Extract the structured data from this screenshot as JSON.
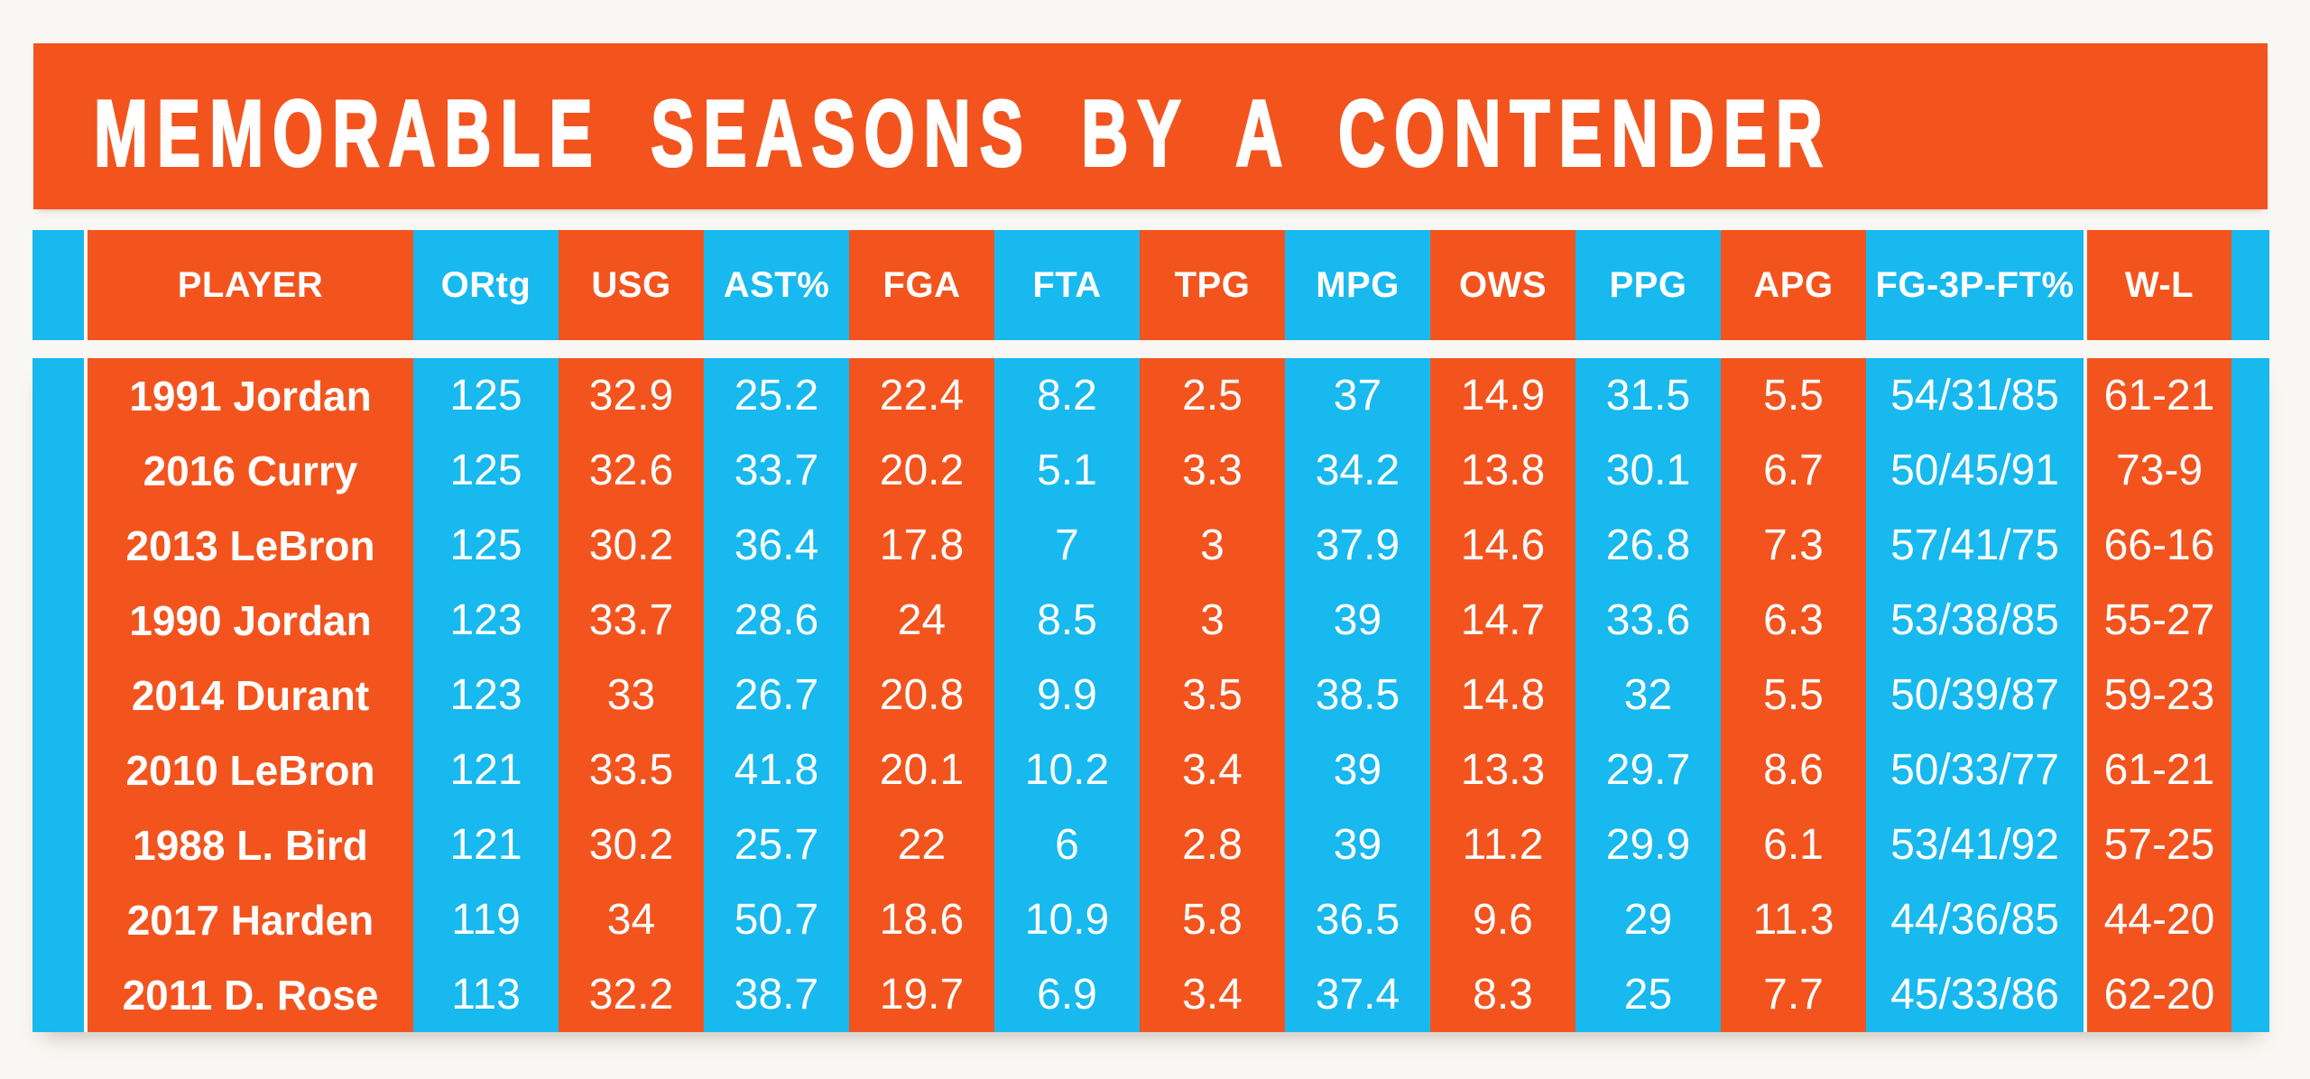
{
  "title": "MEMORABLE SEASONS BY A CONTENDER",
  "colors": {
    "orange": "#F3541E",
    "cyan": "#17B9EF",
    "text": "#FFFFFF",
    "background": "#F9F7F3"
  },
  "table": {
    "columns": [
      {
        "key": "player",
        "label": "PLAYER",
        "color": "orange"
      },
      {
        "key": "ortg",
        "label": "ORtg",
        "color": "cyan"
      },
      {
        "key": "usg",
        "label": "USG",
        "color": "orange"
      },
      {
        "key": "astpct",
        "label": "AST%",
        "color": "cyan"
      },
      {
        "key": "fga",
        "label": "FGA",
        "color": "orange"
      },
      {
        "key": "fta",
        "label": "FTA",
        "color": "cyan"
      },
      {
        "key": "tpg",
        "label": "TPG",
        "color": "orange"
      },
      {
        "key": "mpg",
        "label": "MPG",
        "color": "cyan"
      },
      {
        "key": "ows",
        "label": "OWS",
        "color": "orange"
      },
      {
        "key": "ppg",
        "label": "PPG",
        "color": "cyan"
      },
      {
        "key": "apg",
        "label": "APG",
        "color": "orange"
      },
      {
        "key": "fg3pft",
        "label": "FG-3P-FT%",
        "color": "cyan"
      },
      {
        "key": "wl",
        "label": "W-L",
        "color": "orange"
      }
    ],
    "rows": [
      [
        "1991 Jordan",
        "125",
        "32.9",
        "25.2",
        "22.4",
        "8.2",
        "2.5",
        "37",
        "14.9",
        "31.5",
        "5.5",
        "54/31/85",
        "61-21"
      ],
      [
        "2016 Curry",
        "125",
        "32.6",
        "33.7",
        "20.2",
        "5.1",
        "3.3",
        "34.2",
        "13.8",
        "30.1",
        "6.7",
        "50/45/91",
        "73-9"
      ],
      [
        "2013 LeBron",
        "125",
        "30.2",
        "36.4",
        "17.8",
        "7",
        "3",
        "37.9",
        "14.6",
        "26.8",
        "7.3",
        "57/41/75",
        "66-16"
      ],
      [
        "1990 Jordan",
        "123",
        "33.7",
        "28.6",
        "24",
        "8.5",
        "3",
        "39",
        "14.7",
        "33.6",
        "6.3",
        "53/38/85",
        "55-27"
      ],
      [
        "2014 Durant",
        "123",
        "33",
        "26.7",
        "20.8",
        "9.9",
        "3.5",
        "38.5",
        "14.8",
        "32",
        "5.5",
        "50/39/87",
        "59-23"
      ],
      [
        "2010 LeBron",
        "121",
        "33.5",
        "41.8",
        "20.1",
        "10.2",
        "3.4",
        "39",
        "13.3",
        "29.7",
        "8.6",
        "50/33/77",
        "61-21"
      ],
      [
        "1988 L. Bird",
        "121",
        "30.2",
        "25.7",
        "22",
        "6",
        "2.8",
        "39",
        "11.2",
        "29.9",
        "6.1",
        "53/41/92",
        "57-25"
      ],
      [
        "2017 Harden",
        "119",
        "34",
        "50.7",
        "18.6",
        "10.9",
        "5.8",
        "36.5",
        "9.6",
        "29",
        "11.3",
        "44/36/85",
        "44-20"
      ],
      [
        "2011 D. Rose",
        "113",
        "32.2",
        "38.7",
        "19.7",
        "6.9",
        "3.4",
        "37.4",
        "8.3",
        "25",
        "7.7",
        "45/33/86",
        "62-20"
      ]
    ]
  },
  "chart_data": {
    "type": "table",
    "title": "MEMORABLE SEASONS BY A CONTENDER",
    "columns": [
      "PLAYER",
      "ORtg",
      "USG",
      "AST%",
      "FGA",
      "FTA",
      "TPG",
      "MPG",
      "OWS",
      "PPG",
      "APG",
      "FG-3P-FT%",
      "W-L"
    ],
    "rows": [
      [
        "1991 Jordan",
        125,
        32.9,
        25.2,
        22.4,
        8.2,
        2.5,
        37,
        14.9,
        31.5,
        5.5,
        "54/31/85",
        "61-21"
      ],
      [
        "2016 Curry",
        125,
        32.6,
        33.7,
        20.2,
        5.1,
        3.3,
        34.2,
        13.8,
        30.1,
        6.7,
        "50/45/91",
        "73-9"
      ],
      [
        "2013 LeBron",
        125,
        30.2,
        36.4,
        17.8,
        7,
        3,
        37.9,
        14.6,
        26.8,
        7.3,
        "57/41/75",
        "66-16"
      ],
      [
        "1990 Jordan",
        123,
        33.7,
        28.6,
        24,
        8.5,
        3,
        39,
        14.7,
        33.6,
        6.3,
        "53/38/85",
        "55-27"
      ],
      [
        "2014 Durant",
        123,
        33,
        26.7,
        20.8,
        9.9,
        3.5,
        38.5,
        14.8,
        32,
        5.5,
        "50/39/87",
        "59-23"
      ],
      [
        "2010 LeBron",
        121,
        33.5,
        41.8,
        20.1,
        10.2,
        3.4,
        39,
        13.3,
        29.7,
        8.6,
        "50/33/77",
        "61-21"
      ],
      [
        "1988 L. Bird",
        121,
        30.2,
        25.7,
        22,
        6,
        2.8,
        39,
        11.2,
        29.9,
        6.1,
        "53/41/92",
        "57-25"
      ],
      [
        "2017 Harden",
        119,
        34,
        50.7,
        18.6,
        10.9,
        5.8,
        36.5,
        9.6,
        29,
        11.3,
        "44/36/85",
        "44-20"
      ],
      [
        "2011 D. Rose",
        113,
        32.2,
        38.7,
        19.7,
        6.9,
        3.4,
        37.4,
        8.3,
        25,
        7.7,
        "45/33/86",
        "62-20"
      ]
    ]
  }
}
